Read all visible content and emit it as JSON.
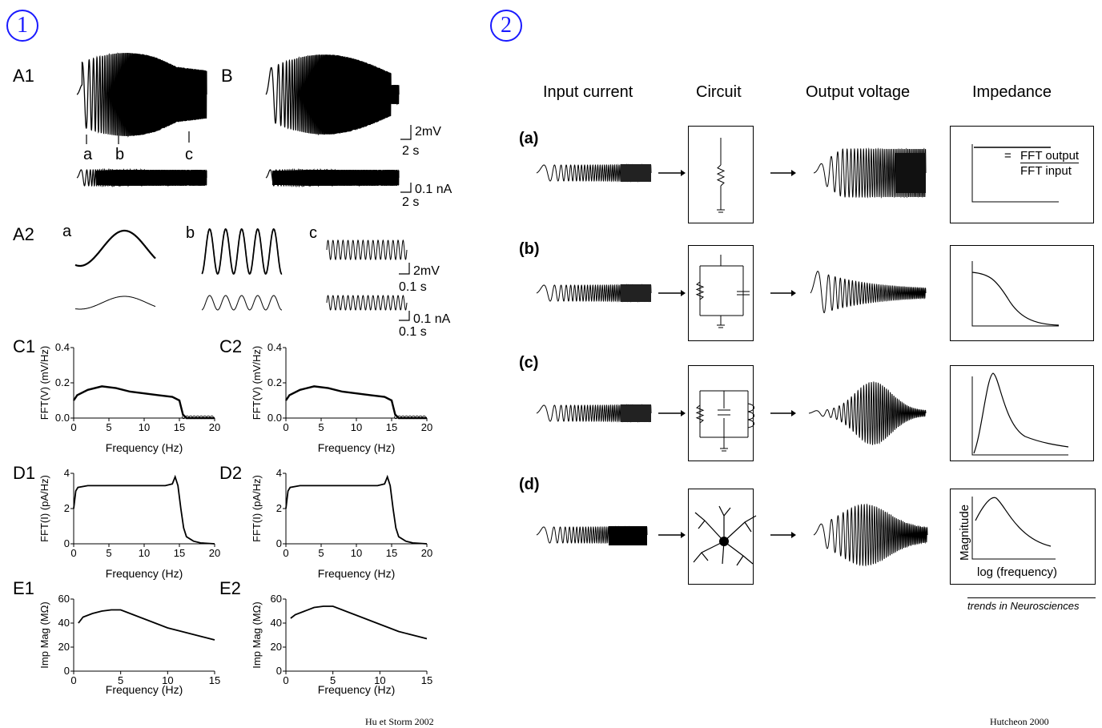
{
  "panel1": {
    "number": "1",
    "citation": "Hu et Storm 2002",
    "a1": {
      "label": "A1",
      "marks": [
        "a",
        "b",
        "c"
      ],
      "scale_voltage": "2mV",
      "scale_time": "2 s",
      "scale_current": "0.1 nA",
      "scale_time2": "2 s"
    },
    "b": {
      "label": "B"
    },
    "a2": {
      "label": "A2",
      "sub_labels": [
        "a",
        "b",
        "c"
      ],
      "scale_voltage": "2mV",
      "scale_time": "0.1 s",
      "scale_current": "0.1 nA",
      "scale_time2": "0.1 s"
    },
    "c_charts": {
      "labels": [
        "C1",
        "C2"
      ],
      "ylabel": "FFT(V) (mV/Hz)",
      "xlabel": "Frequency (Hz)",
      "yticks": [
        "0.0",
        "0.2",
        "0.4"
      ],
      "xticks": [
        "0",
        "5",
        "10",
        "15",
        "20"
      ]
    },
    "d_charts": {
      "labels": [
        "D1",
        "D2"
      ],
      "ylabel": "FFT(I) (pA/Hz)",
      "xlabel": "Frequency (Hz)",
      "yticks": [
        "0",
        "2",
        "4"
      ],
      "xticks": [
        "0",
        "5",
        "10",
        "15",
        "20"
      ]
    },
    "e_charts": {
      "labels": [
        "E1",
        "E2"
      ],
      "ylabel": "Imp Mag (MΩ)",
      "xlabel": "Frequency (Hz)",
      "yticks": [
        "0",
        "20",
        "40",
        "60"
      ],
      "xticks": [
        "0",
        "5",
        "10",
        "15"
      ]
    }
  },
  "panel2": {
    "number": "2",
    "citation": "Hutcheon 2000",
    "journal": "trends in Neurosciences",
    "headers": [
      "Input current",
      "Circuit",
      "Output voltage",
      "Impedance"
    ],
    "rows": [
      "(a)",
      "(b)",
      "(c)",
      "(d)"
    ],
    "fft_output": "FFT output",
    "fft_input": "FFT input",
    "equals": "=",
    "magnitude": "Magnitude",
    "log_frequency": "log (frequency)"
  },
  "chart_data": [
    {
      "type": "line",
      "title": "C1",
      "xlabel": "Frequency (Hz)",
      "ylabel": "FFT(V) (mV/Hz)",
      "xlim": [
        0,
        20
      ],
      "ylim": [
        0,
        0.4
      ],
      "x": [
        0,
        0.5,
        2,
        4,
        6,
        8,
        10,
        12,
        14,
        15,
        15.5,
        16,
        18,
        20
      ],
      "y": [
        0.1,
        0.13,
        0.16,
        0.18,
        0.17,
        0.15,
        0.14,
        0.13,
        0.12,
        0.1,
        0.02,
        0.0,
        0.0,
        0.0
      ]
    },
    {
      "type": "line",
      "title": "C2",
      "xlabel": "Frequency (Hz)",
      "ylabel": "FFT(V) (mV/Hz)",
      "xlim": [
        0,
        20
      ],
      "ylim": [
        0,
        0.4
      ],
      "x": [
        0,
        0.5,
        2,
        4,
        6,
        8,
        10,
        12,
        14,
        15,
        15.5,
        16,
        18,
        20
      ],
      "y": [
        0.1,
        0.13,
        0.16,
        0.18,
        0.17,
        0.15,
        0.14,
        0.13,
        0.12,
        0.1,
        0.02,
        0.0,
        0.0,
        0.0
      ]
    },
    {
      "type": "line",
      "title": "D1",
      "xlabel": "Frequency (Hz)",
      "ylabel": "FFT(I) (pA/Hz)",
      "xlim": [
        0,
        20
      ],
      "ylim": [
        0,
        4
      ],
      "x": [
        0,
        0.3,
        0.6,
        2,
        5,
        10,
        13,
        14,
        14.4,
        14.8,
        15.2,
        15.6,
        16,
        17,
        18,
        20
      ],
      "y": [
        2.0,
        3.0,
        3.2,
        3.3,
        3.3,
        3.3,
        3.3,
        3.4,
        3.8,
        3.3,
        2.0,
        0.9,
        0.4,
        0.15,
        0.05,
        0.0
      ]
    },
    {
      "type": "line",
      "title": "D2",
      "xlabel": "Frequency (Hz)",
      "ylabel": "FFT(I) (pA/Hz)",
      "xlim": [
        0,
        20
      ],
      "ylim": [
        0,
        4
      ],
      "x": [
        0,
        0.3,
        0.6,
        2,
        5,
        10,
        13,
        14,
        14.4,
        14.8,
        15.2,
        15.6,
        16,
        17,
        18,
        20
      ],
      "y": [
        2.0,
        3.0,
        3.2,
        3.3,
        3.3,
        3.3,
        3.3,
        3.4,
        3.8,
        3.3,
        2.0,
        0.9,
        0.4,
        0.15,
        0.05,
        0.0
      ]
    },
    {
      "type": "line",
      "title": "E1",
      "xlabel": "Frequency (Hz)",
      "ylabel": "Imp Mag (MΩ)",
      "xlim": [
        0,
        15
      ],
      "ylim": [
        0,
        60
      ],
      "x": [
        0.5,
        1,
        2,
        3,
        4,
        5,
        6,
        7,
        8,
        9,
        10,
        11,
        12,
        13,
        14,
        15
      ],
      "y": [
        40,
        45,
        48,
        50,
        51,
        51,
        48,
        45,
        42,
        39,
        36,
        34,
        32,
        30,
        28,
        26
      ]
    },
    {
      "type": "line",
      "title": "E2",
      "xlabel": "Frequency (Hz)",
      "ylabel": "Imp Mag (MΩ)",
      "xlim": [
        0,
        15
      ],
      "ylim": [
        0,
        60
      ],
      "x": [
        0.5,
        1,
        2,
        3,
        4,
        5,
        6,
        7,
        8,
        9,
        10,
        11,
        12,
        13,
        14,
        15
      ],
      "y": [
        44,
        47,
        50,
        53,
        54,
        54,
        51,
        48,
        45,
        42,
        39,
        36,
        33,
        31,
        29,
        27
      ]
    }
  ]
}
